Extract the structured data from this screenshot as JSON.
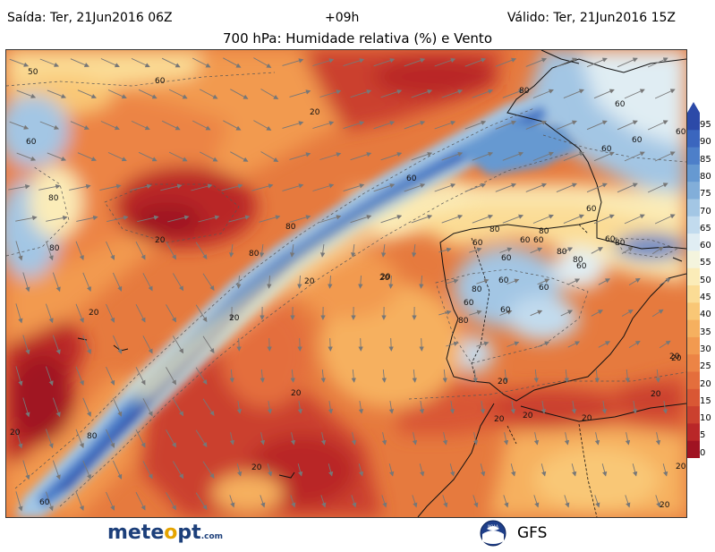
{
  "header": {
    "issue_label": "Saída: Ter, 21Jun2016 06Z",
    "lead_label": "+09h",
    "valid_label": "Válido: Ter, 21Jun2016 15Z",
    "title": "700 hPa: Humidade relativa (%) e Vento"
  },
  "map": {
    "contour_labels": [
      {
        "text": "50"
      },
      {
        "text": "60"
      },
      {
        "text": "80"
      },
      {
        "text": "60"
      },
      {
        "text": "80"
      },
      {
        "text": "20"
      },
      {
        "text": "80"
      },
      {
        "text": "60"
      },
      {
        "text": "20"
      },
      {
        "text": "60"
      },
      {
        "text": "80"
      },
      {
        "text": "80"
      },
      {
        "text": "20"
      },
      {
        "text": "20"
      },
      {
        "text": "20"
      },
      {
        "text": "80"
      },
      {
        "text": "60"
      },
      {
        "text": "20"
      },
      {
        "text": "60"
      },
      {
        "text": "80"
      },
      {
        "text": "60"
      },
      {
        "text": "60"
      },
      {
        "text": "80"
      },
      {
        "text": "60"
      },
      {
        "text": "60"
      },
      {
        "text": "80"
      },
      {
        "text": "80"
      },
      {
        "text": "60"
      },
      {
        "text": "60"
      },
      {
        "text": "60"
      },
      {
        "text": "80"
      },
      {
        "text": "60"
      },
      {
        "text": "60"
      },
      {
        "text": "80"
      },
      {
        "text": "60"
      },
      {
        "text": "20"
      },
      {
        "text": "20"
      },
      {
        "text": "20"
      },
      {
        "text": "20"
      },
      {
        "text": "20"
      },
      {
        "text": "20"
      },
      {
        "text": "20"
      },
      {
        "text": "20"
      },
      {
        "text": "20"
      },
      {
        "text": "20"
      },
      {
        "text": "20"
      },
      {
        "text": "80"
      },
      {
        "text": "60"
      },
      {
        "text": "20"
      },
      {
        "text": "20"
      },
      {
        "text": "60"
      },
      {
        "text": "60"
      }
    ]
  },
  "colorbar": {
    "labels": [
      "95",
      "90",
      "85",
      "80",
      "75",
      "70",
      "65",
      "60",
      "55",
      "50",
      "45",
      "40",
      "35",
      "30",
      "25",
      "20",
      "15",
      "10",
      "5",
      "0"
    ],
    "colors": [
      "#2c4aa8",
      "#3b66be",
      "#4d7fc9",
      "#6699d1",
      "#82aed9",
      "#a3c6e4",
      "#c2dbee",
      "#e0edf3",
      "#f4f4dd",
      "#fbecb8",
      "#fbdc95",
      "#f9c776",
      "#f6b05f",
      "#f29a50",
      "#ec8445",
      "#e46e3c",
      "#d95734",
      "#cb402e",
      "#b92728",
      "#a01322"
    ]
  },
  "logos": {
    "meteo_text_a": "mete",
    "meteo_dot": "o",
    "meteo_text_b": "pt",
    "meteo_com": ".com",
    "noaa_text": "NOAA",
    "gfs_text": "GFS"
  },
  "colors": {
    "very_dry": "#a01322",
    "dry": "#e46e3c",
    "mid": "#f6b05f",
    "moist": "#fbecb8",
    "wet": "#82aed9",
    "very_wet": "#2c4aa8",
    "arrow": "#777777",
    "coast": "#111111"
  }
}
